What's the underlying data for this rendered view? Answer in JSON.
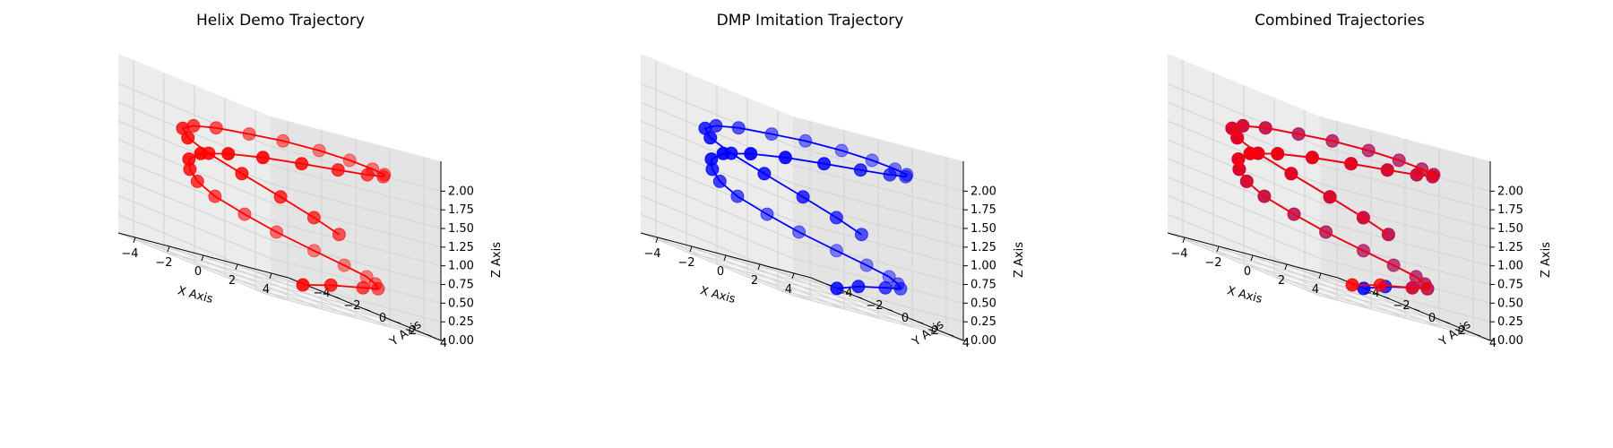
{
  "figure": {
    "background": "#ffffff"
  },
  "colors": {
    "demo": "#ff0000",
    "dmp": "#0000ff",
    "pane_left": "#ececec",
    "pane_right": "#e4e4e4",
    "pane_floor": "#f4f4f4",
    "grid": "#d2d2d2"
  },
  "chart_data": [
    {
      "type": "scatter",
      "projection": "3d",
      "title": "Helix Demo Trajectory",
      "xlabel": "X Axis",
      "ylabel": "Y Axis",
      "zlabel": "Z Axis",
      "xlim": [
        -5,
        5
      ],
      "ylim": [
        -5,
        5
      ],
      "zlim": [
        0,
        2
      ],
      "xticks": [
        "−4",
        "−2",
        "0",
        "2",
        "4"
      ],
      "yticks": [
        "−4",
        "−2",
        "0",
        "2",
        "4"
      ],
      "zticks": [
        "0.00",
        "0.25",
        "0.50",
        "0.75",
        "1.00",
        "1.25",
        "1.50",
        "1.75",
        "2.00"
      ],
      "grid": true,
      "series": [
        {
          "color": "#ff0000",
          "points": [
            [
              4.5,
              -3.5,
              0
            ],
            [
              4.8,
              -2,
              0.14
            ],
            [
              4.9,
              0,
              0.28
            ],
            [
              4,
              2,
              0.38
            ],
            [
              2.5,
              3.5,
              0.48
            ],
            [
              1,
              4.6,
              0.58
            ],
            [
              -0.5,
              4.8,
              0.66
            ],
            [
              -2,
              4.5,
              0.74
            ],
            [
              -3.4,
              3.6,
              0.83
            ],
            [
              -4.2,
              2.4,
              0.92
            ],
            [
              -4.6,
              0.9,
              1.01
            ],
            [
              -4.2,
              -0.7,
              1.1
            ],
            [
              -3.3,
              -2.2,
              1.19
            ],
            [
              -2.1,
              -3.6,
              1.28
            ],
            [
              -0.6,
              -4.5,
              1.37
            ],
            [
              1.1,
              -4.6,
              1.46
            ],
            [
              2.6,
              -4,
              1.55
            ],
            [
              3.8,
              -2.8,
              1.64
            ],
            [
              4.6,
              -1.3,
              1.73
            ],
            [
              4.8,
              0.4,
              1.82
            ],
            [
              4.3,
              2,
              1.9
            ],
            [
              3.2,
              3.3,
              1.97
            ],
            [
              1.7,
              4.2,
              2.03
            ],
            [
              0,
              4.6,
              2.08
            ],
            [
              -1.7,
              4.5,
              2.1
            ],
            [
              -3.2,
              3.8,
              2.08
            ],
            [
              -4.2,
              2.7,
              2.02
            ],
            [
              -4.8,
              1.2,
              1.94
            ],
            [
              -4.7,
              -0.4,
              1.84
            ],
            [
              -3.9,
              -2,
              1.72
            ],
            [
              -2.7,
              -3,
              1.58
            ],
            [
              -1.3,
              -3.2,
              1.44
            ],
            [
              0.2,
              -2.7,
              1.3
            ],
            [
              1.4,
              -1.5,
              1.16
            ],
            [
              2.2,
              -0.2,
              1.04
            ],
            [
              2.6,
              1,
              0.94
            ]
          ]
        }
      ]
    },
    {
      "type": "scatter",
      "projection": "3d",
      "title": "DMP Imitation Trajectory",
      "xlabel": "X Axis",
      "ylabel": "Y Axis",
      "zlabel": "Z Axis",
      "xlim": [
        -5,
        5
      ],
      "ylim": [
        -5,
        5
      ],
      "zlim": [
        0,
        2
      ],
      "xticks": [
        "−4",
        "−2",
        "0",
        "2",
        "4"
      ],
      "yticks": [
        "−4",
        "−2",
        "0",
        "2",
        "4"
      ],
      "zticks": [
        "0.00",
        "0.25",
        "0.50",
        "0.75",
        "1.00",
        "1.25",
        "1.50",
        "1.75",
        "2.00"
      ],
      "grid": true,
      "series": [
        {
          "color": "#0000ff",
          "points": [
            [
              5,
              -3.3,
              0
            ],
            [
              5.1,
              -2,
              0.14
            ],
            [
              4.9,
              0,
              0.28
            ],
            [
              4,
              2,
              0.38
            ],
            [
              2.5,
              3.5,
              0.48
            ],
            [
              1,
              4.6,
              0.58
            ],
            [
              -0.5,
              4.8,
              0.66
            ],
            [
              -2,
              4.5,
              0.74
            ],
            [
              -3.4,
              3.6,
              0.83
            ],
            [
              -4.2,
              2.4,
              0.92
            ],
            [
              -4.6,
              0.9,
              1.01
            ],
            [
              -4.2,
              -0.7,
              1.1
            ],
            [
              -3.3,
              -2.2,
              1.19
            ],
            [
              -2.1,
              -3.6,
              1.28
            ],
            [
              -0.6,
              -4.5,
              1.37
            ],
            [
              1.1,
              -4.6,
              1.46
            ],
            [
              2.6,
              -4,
              1.55
            ],
            [
              3.8,
              -2.8,
              1.64
            ],
            [
              4.6,
              -1.3,
              1.73
            ],
            [
              4.8,
              0.4,
              1.82
            ],
            [
              4.3,
              2,
              1.9
            ],
            [
              3.2,
              3.3,
              1.97
            ],
            [
              1.7,
              4.2,
              2.03
            ],
            [
              0,
              4.6,
              2.08
            ],
            [
              -1.7,
              4.5,
              2.1
            ],
            [
              -3.2,
              3.8,
              2.08
            ],
            [
              -4.2,
              2.7,
              2.02
            ],
            [
              -4.8,
              1.2,
              1.94
            ],
            [
              -4.7,
              -0.4,
              1.84
            ],
            [
              -3.9,
              -2,
              1.72
            ],
            [
              -2.7,
              -3,
              1.58
            ],
            [
              -1.3,
              -3.2,
              1.44
            ],
            [
              0.2,
              -2.7,
              1.3
            ],
            [
              1.4,
              -1.5,
              1.16
            ],
            [
              2.2,
              -0.2,
              1.04
            ],
            [
              2.6,
              1,
              0.94
            ]
          ]
        }
      ]
    },
    {
      "type": "scatter",
      "projection": "3d",
      "title": "Combined Trajectories",
      "xlabel": "X Axis",
      "ylabel": "Y Axis",
      "zlabel": "Z Axis",
      "xlim": [
        -5,
        5
      ],
      "ylim": [
        -5,
        5
      ],
      "zlim": [
        0,
        2
      ],
      "xticks": [
        "−4",
        "−2",
        "0",
        "2",
        "4"
      ],
      "yticks": [
        "−4",
        "−2",
        "0",
        "2",
        "4"
      ],
      "zticks": [
        "0.00",
        "0.25",
        "0.50",
        "0.75",
        "1.00",
        "1.25",
        "1.50",
        "1.75",
        "2.00"
      ],
      "grid": true,
      "series": [
        {
          "color": "#0000ff",
          "points": [
            [
              5,
              -3.3,
              0
            ],
            [
              5.1,
              -2,
              0.14
            ],
            [
              4.9,
              0,
              0.28
            ],
            [
              4,
              2,
              0.38
            ],
            [
              2.5,
              3.5,
              0.48
            ],
            [
              1,
              4.6,
              0.58
            ],
            [
              -0.5,
              4.8,
              0.66
            ],
            [
              -2,
              4.5,
              0.74
            ],
            [
              -3.4,
              3.6,
              0.83
            ],
            [
              -4.2,
              2.4,
              0.92
            ],
            [
              -4.6,
              0.9,
              1.01
            ],
            [
              -4.2,
              -0.7,
              1.1
            ],
            [
              -3.3,
              -2.2,
              1.19
            ],
            [
              -2.1,
              -3.6,
              1.28
            ],
            [
              -0.6,
              -4.5,
              1.37
            ],
            [
              1.1,
              -4.6,
              1.46
            ],
            [
              2.6,
              -4,
              1.55
            ],
            [
              3.8,
              -2.8,
              1.64
            ],
            [
              4.6,
              -1.3,
              1.73
            ],
            [
              4.8,
              0.4,
              1.82
            ],
            [
              4.3,
              2,
              1.9
            ],
            [
              3.2,
              3.3,
              1.97
            ],
            [
              1.7,
              4.2,
              2.03
            ],
            [
              0,
              4.6,
              2.08
            ],
            [
              -1.7,
              4.5,
              2.1
            ],
            [
              -3.2,
              3.8,
              2.08
            ],
            [
              -4.2,
              2.7,
              2.02
            ],
            [
              -4.8,
              1.2,
              1.94
            ],
            [
              -4.7,
              -0.4,
              1.84
            ],
            [
              -3.9,
              -2,
              1.72
            ],
            [
              -2.7,
              -3,
              1.58
            ],
            [
              -1.3,
              -3.2,
              1.44
            ],
            [
              0.2,
              -2.7,
              1.3
            ],
            [
              1.4,
              -1.5,
              1.16
            ],
            [
              2.2,
              -0.2,
              1.04
            ],
            [
              2.6,
              1,
              0.94
            ]
          ]
        },
        {
          "color": "#ff0000",
          "points": [
            [
              4.5,
              -3.5,
              0
            ],
            [
              4.8,
              -2,
              0.14
            ],
            [
              4.9,
              0,
              0.28
            ],
            [
              4,
              2,
              0.38
            ],
            [
              2.5,
              3.5,
              0.48
            ],
            [
              1,
              4.6,
              0.58
            ],
            [
              -0.5,
              4.8,
              0.66
            ],
            [
              -2,
              4.5,
              0.74
            ],
            [
              -3.4,
              3.6,
              0.83
            ],
            [
              -4.2,
              2.4,
              0.92
            ],
            [
              -4.6,
              0.9,
              1.01
            ],
            [
              -4.2,
              -0.7,
              1.1
            ],
            [
              -3.3,
              -2.2,
              1.19
            ],
            [
              -2.1,
              -3.6,
              1.28
            ],
            [
              -0.6,
              -4.5,
              1.37
            ],
            [
              1.1,
              -4.6,
              1.46
            ],
            [
              2.6,
              -4,
              1.55
            ],
            [
              3.8,
              -2.8,
              1.64
            ],
            [
              4.6,
              -1.3,
              1.73
            ],
            [
              4.8,
              0.4,
              1.82
            ],
            [
              4.3,
              2,
              1.9
            ],
            [
              3.2,
              3.3,
              1.97
            ],
            [
              1.7,
              4.2,
              2.03
            ],
            [
              0,
              4.6,
              2.08
            ],
            [
              -1.7,
              4.5,
              2.1
            ],
            [
              -3.2,
              3.8,
              2.08
            ],
            [
              -4.2,
              2.7,
              2.02
            ],
            [
              -4.8,
              1.2,
              1.94
            ],
            [
              -4.7,
              -0.4,
              1.84
            ],
            [
              -3.9,
              -2,
              1.72
            ],
            [
              -2.7,
              -3,
              1.58
            ],
            [
              -1.3,
              -3.2,
              1.44
            ],
            [
              0.2,
              -2.7,
              1.3
            ],
            [
              1.4,
              -1.5,
              1.16
            ],
            [
              2.2,
              -0.2,
              1.04
            ],
            [
              2.6,
              1,
              0.94
            ]
          ]
        }
      ]
    }
  ]
}
